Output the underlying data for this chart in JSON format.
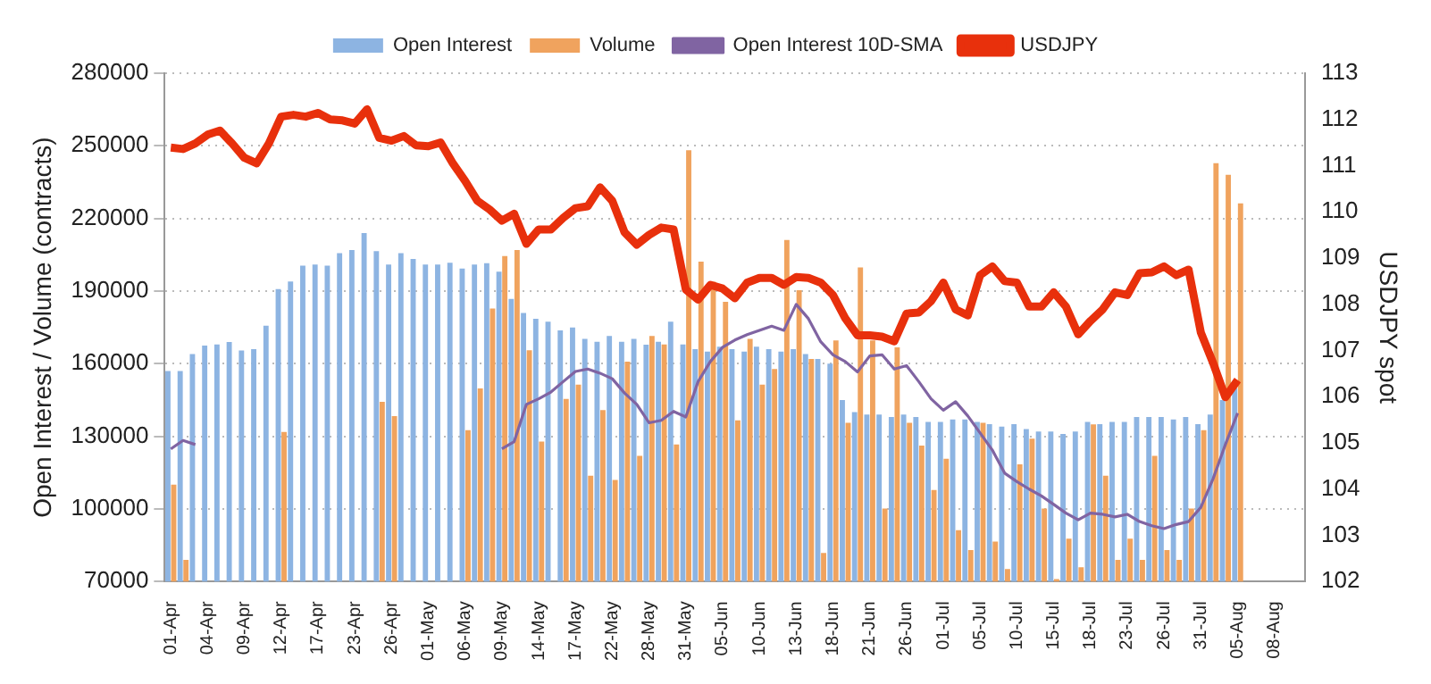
{
  "chart_data": {
    "type": "bar",
    "ylabel": "Open Interest / Volume (contracts)",
    "y2label": "USDJPY spot",
    "categories": [
      "01-Apr",
      null,
      null,
      "04-Apr",
      null,
      null,
      "09-Apr",
      null,
      null,
      "12-Apr",
      null,
      null,
      "17-Apr",
      null,
      null,
      "23-Apr",
      null,
      null,
      "26-Apr",
      null,
      null,
      "01-May",
      null,
      null,
      "06-May",
      null,
      null,
      "09-May",
      null,
      null,
      "14-May",
      null,
      null,
      "17-May",
      null,
      null,
      "22-May",
      null,
      null,
      "28-May",
      null,
      null,
      "31-May",
      null,
      null,
      "05-Jun",
      null,
      null,
      "10-Jun",
      null,
      null,
      "13-Jun",
      null,
      null,
      "18-Jun",
      null,
      null,
      "21-Jun",
      null,
      null,
      "26-Jun",
      null,
      null,
      "01-Jul",
      null,
      null,
      "05-Jul",
      null,
      null,
      "10-Jul",
      null,
      null,
      "15-Jul",
      null,
      null,
      "18-Jul",
      null,
      null,
      "23-Jul",
      null,
      null,
      "26-Jul",
      null,
      null,
      "31-Jul",
      null,
      null,
      "05-Aug",
      null,
      null,
      "08-Aug",
      null,
      null
    ],
    "series": [
      {
        "name": "Open Interest",
        "color": "#8db4e2",
        "values": [
          157000,
          157000,
          164000,
          167500,
          168000,
          169000,
          165500,
          166000,
          175700,
          190800,
          194000,
          200500,
          201000,
          200500,
          205700,
          207000,
          214000,
          206500,
          201000,
          205700,
          203300,
          201000,
          201000,
          201700,
          199300,
          201000,
          201500,
          198000,
          186800,
          181000,
          178600,
          177400,
          173800,
          175000,
          170300,
          169100,
          171500,
          169100,
          170300,
          167900,
          169100,
          177400,
          168000,
          166000,
          165000,
          167000,
          166000,
          165000,
          167000,
          166000,
          165000,
          166000,
          164000,
          162000,
          160000,
          145000,
          140000,
          139000,
          139000,
          138000,
          139000,
          138000,
          136000,
          136000,
          137000,
          137000,
          136000,
          135000,
          134000,
          135000,
          133000,
          132000,
          132000,
          131000,
          132000,
          136000,
          135000,
          136000,
          136000,
          138000,
          138000,
          138000,
          137000,
          138000,
          135000,
          139000,
          145000,
          150000,
          null,
          null,
          null,
          null,
          null
        ]
      },
      {
        "name": "Volume",
        "color": "#f0a35e",
        "values": [
          110000,
          79000,
          null,
          null,
          null,
          null,
          null,
          null,
          null,
          131800,
          null,
          null,
          null,
          null,
          null,
          null,
          null,
          144300,
          138400,
          null,
          null,
          null,
          null,
          null,
          132500,
          149800,
          182800,
          204500,
          207000,
          165600,
          127800,
          null,
          145500,
          151400,
          113700,
          140800,
          112000,
          160900,
          121900,
          171500,
          168000,
          126600,
          248200,
          202200,
          193900,
          185600,
          136600,
          170300,
          151400,
          157800,
          211100,
          190400,
          162000,
          81800,
          169600,
          135600,
          199800,
          169600,
          100200,
          166800,
          135600,
          126200,
          107800,
          120700,
          91200,
          83000,
          135600,
          86500,
          75200,
          118400,
          129000,
          100200,
          71000,
          87700,
          75900,
          134900,
          113700,
          79000,
          87700,
          79000,
          121900,
          83000,
          79000,
          100200,
          132500,
          242800,
          238000,
          226200,
          null,
          null,
          null,
          null,
          null
        ]
      },
      {
        "name": "Open Interest 10D-SMA",
        "type": "line",
        "color": "#8064a2",
        "values": [
          124800,
          128300,
          126600,
          null,
          null,
          null,
          null,
          null,
          null,
          null,
          null,
          null,
          null,
          null,
          null,
          null,
          null,
          null,
          null,
          null,
          null,
          null,
          null,
          null,
          null,
          null,
          null,
          124800,
          127800,
          143200,
          145500,
          148300,
          152600,
          156800,
          157800,
          156100,
          153800,
          147900,
          143200,
          135600,
          136600,
          140300,
          138000,
          152600,
          160900,
          166800,
          169800,
          172000,
          173800,
          175500,
          173800,
          184500,
          178600,
          169100,
          163700,
          160900,
          156600,
          163200,
          163700,
          157800,
          159200,
          152600,
          145500,
          140800,
          144300,
          138400,
          131400,
          124300,
          114800,
          111300,
          108200,
          105400,
          101900,
          98300,
          95500,
          98300,
          97800,
          96700,
          97800,
          94800,
          93100,
          91900,
          93600,
          94800,
          100700,
          112500,
          126600,
          139600,
          null,
          null,
          null,
          null,
          null
        ]
      },
      {
        "name": "USDJPY",
        "type": "line",
        "axis": "y2",
        "color": "#e8300c",
        "values": [
          111.39,
          111.36,
          111.48,
          111.67,
          111.76,
          111.48,
          111.17,
          111.05,
          111.48,
          112.06,
          112.1,
          112.06,
          112.14,
          112.0,
          111.98,
          111.91,
          112.22,
          111.6,
          111.54,
          111.64,
          111.44,
          111.42,
          111.5,
          111.05,
          110.67,
          110.24,
          110.05,
          109.81,
          109.96,
          109.31,
          109.62,
          109.62,
          109.87,
          110.08,
          110.12,
          110.53,
          110.24,
          109.56,
          109.29,
          109.5,
          109.66,
          109.62,
          108.32,
          108.1,
          108.42,
          108.34,
          108.13,
          108.47,
          108.57,
          108.57,
          108.42,
          108.59,
          108.57,
          108.47,
          108.2,
          107.7,
          107.33,
          107.33,
          107.3,
          107.2,
          107.8,
          107.82,
          108.07,
          108.47,
          107.89,
          107.76,
          108.63,
          108.82,
          108.5,
          108.47,
          107.95,
          107.95,
          108.26,
          107.95,
          107.35,
          107.64,
          107.89,
          108.26,
          108.2,
          108.67,
          108.69,
          108.82,
          108.63,
          108.75,
          107.39,
          106.73,
          105.99,
          106.36,
          null,
          null,
          null,
          null,
          null
        ]
      }
    ],
    "ylim": [
      70000,
      280000
    ],
    "yticks": [
      70000,
      100000,
      130000,
      160000,
      190000,
      220000,
      250000,
      280000
    ],
    "y2lim": [
      102,
      113
    ],
    "y2ticks": [
      102,
      103,
      104,
      105,
      106,
      107,
      108,
      109,
      110,
      111,
      112,
      113
    ],
    "grid": "y",
    "legend": "top"
  }
}
